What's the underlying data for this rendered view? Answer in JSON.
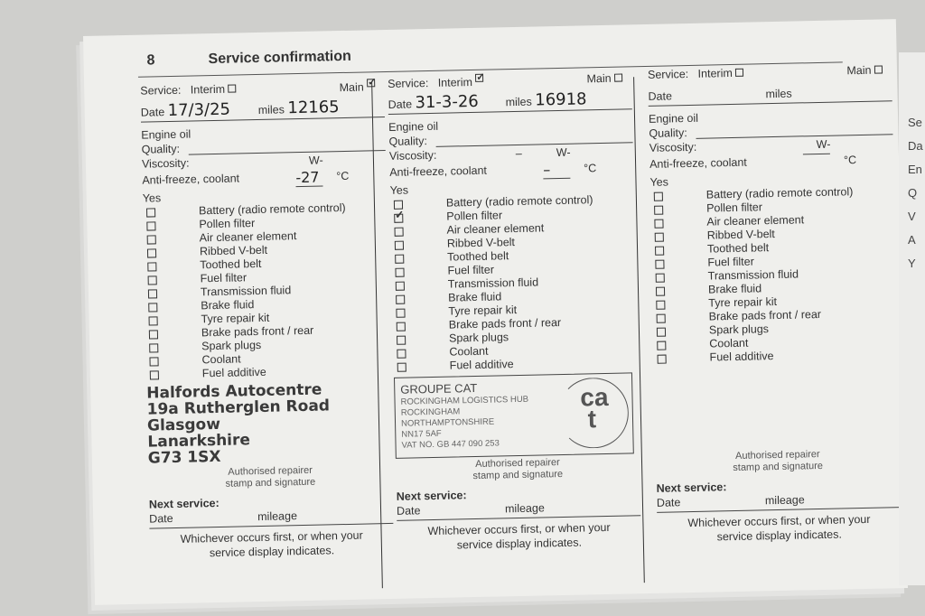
{
  "page_number": "8",
  "title": "Service confirmation",
  "labels": {
    "service": "Service:",
    "interim": "Interim",
    "main": "Main",
    "date": "Date",
    "miles": "miles",
    "engine_oil": "Engine oil",
    "quality": "Quality:",
    "viscosity": "Viscosity:",
    "w": "W-",
    "antifreeze": "Anti-freeze, coolant",
    "celsius": "°C",
    "yes": "Yes",
    "authorised": "Authorised repairer",
    "stamp_sig": "stamp and signature",
    "next_service": "Next service:",
    "next_date": "Date",
    "mileage": "mileage",
    "whichever1": "Whichever occurs first, or when your",
    "whichever2": "service display indicates."
  },
  "items": [
    "Battery (radio remote control)",
    "Pollen filter",
    "Air cleaner element",
    "Ribbed V-belt",
    "Toothed belt",
    "Fuel filter",
    "Transmission fluid",
    "Brake fluid",
    "Tyre repair kit",
    "Brake pads front / rear",
    "Spark plugs",
    "Coolant",
    "Fuel additive"
  ],
  "entries": [
    {
      "interim_checked": false,
      "main_checked": true,
      "date": "17/3/25",
      "miles": "12165",
      "antifreeze": "-27",
      "viscosity": "",
      "checked_items": []
    },
    {
      "interim_checked": true,
      "main_checked": false,
      "date": "31-3-26",
      "miles": "16918",
      "antifreeze": "–",
      "viscosity": "–",
      "checked_items": [
        "Pollen filter"
      ]
    },
    {
      "interim_checked": false,
      "main_checked": false,
      "date": "",
      "miles": "",
      "antifreeze": "",
      "viscosity": "",
      "checked_items": []
    }
  ],
  "stamp_halfords": "Halfords Autocentre\n19a Rutherglen Road\nGlasgow\nLanarkshire\nG73 1SX",
  "stamp_cat": {
    "name": "GROUPE CAT",
    "lines": [
      "ROCKINGHAM LOGISTICS HUB",
      "ROCKINGHAM",
      "NORTHAMPTONSHIRE",
      "NN17 5AF",
      "VAT NO. GB 447 090 253"
    ],
    "logo": "ca t"
  },
  "right_page_fragments": [
    "Se",
    "Da",
    "En",
    "Q",
    "V",
    "A",
    "Y"
  ]
}
